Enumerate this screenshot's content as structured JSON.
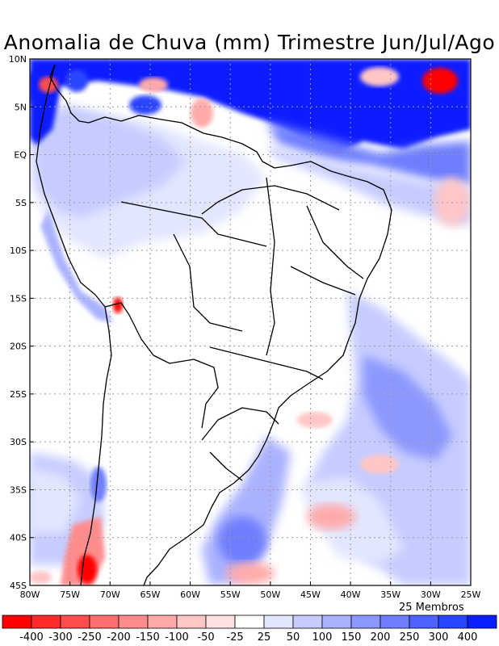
{
  "title": "Anomalia de Chuva (mm) Trimestre Jun/Jul/Ago",
  "members_label": "25 Membros",
  "lat_labels": [
    "10N",
    "5N",
    "EQ",
    "5S",
    "10S",
    "15S",
    "20S",
    "25S",
    "30S",
    "35S",
    "40S",
    "45S"
  ],
  "lon_labels": [
    "80W",
    "75W",
    "70W",
    "65W",
    "60W",
    "55W",
    "50W",
    "45W",
    "40W",
    "35W",
    "30W",
    "25W"
  ],
  "colorbar": {
    "labels": [
      "-400",
      "-300",
      "-250",
      "-200",
      "-150",
      "-100",
      "-50",
      "-25",
      "25",
      "50",
      "100",
      "150",
      "200",
      "250",
      "300",
      "400"
    ],
    "colors": [
      "#ff0000",
      "#ff2a2a",
      "#ff4d4d",
      "#ff6e6e",
      "#ff8c8c",
      "#ffaaaa",
      "#ffc6c6",
      "#ffe1e1",
      "#ffffff",
      "#e3e6ff",
      "#c6ccff",
      "#aab2ff",
      "#8c98ff",
      "#6e7eff",
      "#4d62ff",
      "#2a45ff",
      "#0a1eff"
    ]
  },
  "map": {
    "lat_range": [
      -45,
      10
    ],
    "lon_range": [
      -80,
      -25
    ],
    "grid": true
  }
}
